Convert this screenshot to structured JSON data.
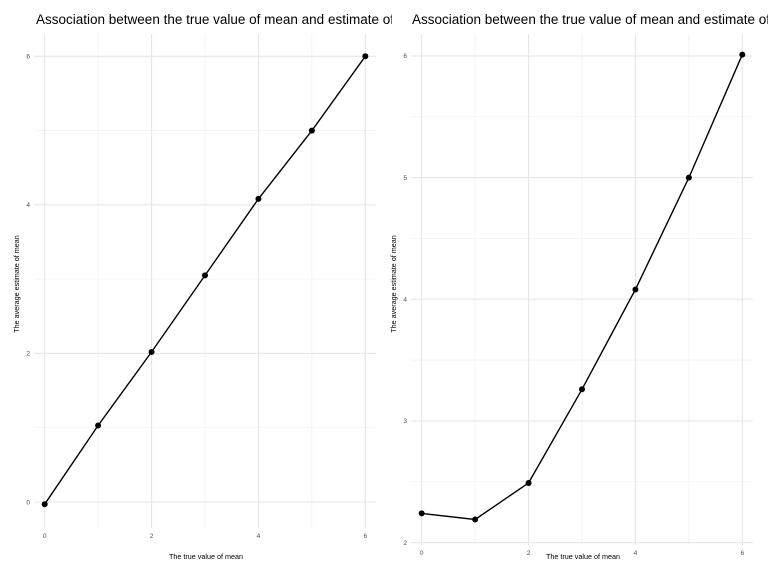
{
  "chart_data": [
    {
      "type": "line",
      "title": "Association between the true value of mean and estimate of mean",
      "xlabel": "The true value of mean",
      "ylabel": "The average estimate of mean",
      "x": [
        0,
        1,
        2,
        3,
        4,
        5,
        6
      ],
      "series": [
        {
          "values": [
            -0.03,
            1.03,
            2.02,
            3.05,
            4.08,
            5.0,
            6.0
          ]
        }
      ],
      "xlim": [
        -0.2,
        6.2
      ],
      "ylim": [
        -0.35,
        6.3
      ],
      "xticks": [
        0,
        2,
        4,
        6
      ],
      "yticks": [
        0,
        2,
        4,
        6
      ],
      "xminor": [
        1,
        3,
        5
      ],
      "yminor": [
        1,
        3,
        5
      ],
      "grid": true,
      "marker": "point"
    },
    {
      "type": "line",
      "title": "Association between the true value of mean and estimate of mean",
      "xlabel": "The true value of mean",
      "ylabel": "The average estimate of mean",
      "x": [
        0,
        1,
        2,
        3,
        4,
        5,
        6
      ],
      "series": [
        {
          "values": [
            2.24,
            2.19,
            2.49,
            3.26,
            4.08,
            5.0,
            6.01
          ]
        }
      ],
      "xlim": [
        -0.2,
        6.2
      ],
      "ylim": [
        1.98,
        6.18
      ],
      "xticks": [
        0,
        2,
        4,
        6
      ],
      "yticks": [
        2,
        3,
        4,
        5,
        6
      ],
      "xminor": [
        1,
        3,
        5
      ],
      "yminor": [
        2.5,
        3.5,
        4.5,
        5.5
      ],
      "grid": true,
      "marker": "point"
    }
  ]
}
